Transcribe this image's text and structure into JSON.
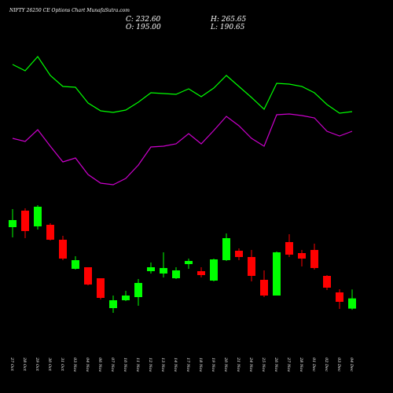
{
  "chart_data": {
    "type": "candlestick",
    "title": "NIFTY 26250  CE Options  Chart MunafaSutra.com",
    "header_labels": [
      "C: 232.60",
      "H: 265.65",
      "O: 195.00",
      "L: 190.65"
    ],
    "categories": [
      "27 Oct",
      "28 Oct",
      "29 Oct",
      "30 Oct",
      "31 Oct",
      "03 Nov",
      "04 Nov",
      "06 Nov",
      "07 Nov",
      "10 Nov",
      "11 Nov",
      "12 Nov",
      "13 Nov",
      "14 Nov",
      "17 Nov",
      "18 Nov",
      "19 Nov",
      "20 Nov",
      "21 Nov",
      "24 Nov",
      "25 Nov",
      "26 Nov",
      "27 Nov",
      "28 Nov",
      "01 Dec",
      "02 Dec",
      "03 Dec",
      "04 Dec"
    ],
    "open": [
      495.5,
      556.4,
      498.4,
      504.2,
      449.1,
      341.8,
      347.6,
      307,
      196.8,
      225.8,
      237.4,
      333.1,
      324.4,
      307,
      359.2,
      333.1,
      298.3,
      373.7,
      408.5,
      385.3,
      301.2,
      243.2,
      440.4,
      399.8,
      411.4,
      315.7,
      254.8,
      195
    ],
    "high": [
      562.2,
      565.1,
      576.7,
      510,
      463.6,
      388.2,
      347.6,
      307,
      243.2,
      260.6,
      304.1,
      365,
      402.7,
      347.6,
      379.5,
      347.6,
      379.5,
      472.3,
      417.2,
      411.4,
      336,
      405.6,
      469.4,
      411.4,
      434.6,
      318.6,
      266.4,
      265.65
    ],
    "low": [
      457.8,
      454.9,
      486.8,
      446.2,
      373.7,
      338.9,
      280.9,
      228.7,
      179.4,
      222.9,
      205.5,
      324.4,
      309.9,
      304.1,
      341.8,
      309.9,
      295.4,
      370.8,
      373.7,
      295.4,
      237.4,
      243.2,
      385.3,
      350.5,
      338.9,
      263.5,
      193.9,
      190.65
    ],
    "close": [
      521.6,
      481,
      570.9,
      449.1,
      379.5,
      373.7,
      283.8,
      234.5,
      225.8,
      243.2,
      289.6,
      347.6,
      344.7,
      336,
      370.8,
      318.6,
      376.6,
      454.9,
      385.3,
      315.7,
      243.2,
      402.7,
      394,
      379.5,
      344.7,
      272.2,
      220,
      232.6
    ],
    "up_color": "#00ff00",
    "down_color": "#ff0000",
    "ylim": [
      -116.4,
      1333.6
    ],
    "y2lim": [
      0,
      100
    ],
    "series": [
      {
        "name": "MA-fast",
        "color": "#00ff00",
        "axis": "y2",
        "values": [
          83.6,
          82,
          85.6,
          80.8,
          78,
          77.8,
          73.8,
          71.8,
          71.4,
          72,
          74,
          76.4,
          76.2,
          76,
          77.4,
          75.4,
          77.6,
          80.8,
          78,
          75.2,
          72.2,
          78.8,
          78.6,
          78,
          76.4,
          73.4,
          71.2,
          71.6
        ]
      },
      {
        "name": "MA-slow",
        "color": "#cc00cc",
        "axis": "y2",
        "values": [
          64.8,
          64,
          67,
          62.8,
          58.8,
          59.8,
          55.6,
          53.4,
          53,
          54.6,
          58,
          62.6,
          62.8,
          63.4,
          66,
          63.4,
          66.8,
          70.4,
          68,
          64.8,
          62.8,
          70.8,
          71,
          70.6,
          70,
          66.6,
          65.4,
          66.6
        ]
      }
    ]
  }
}
